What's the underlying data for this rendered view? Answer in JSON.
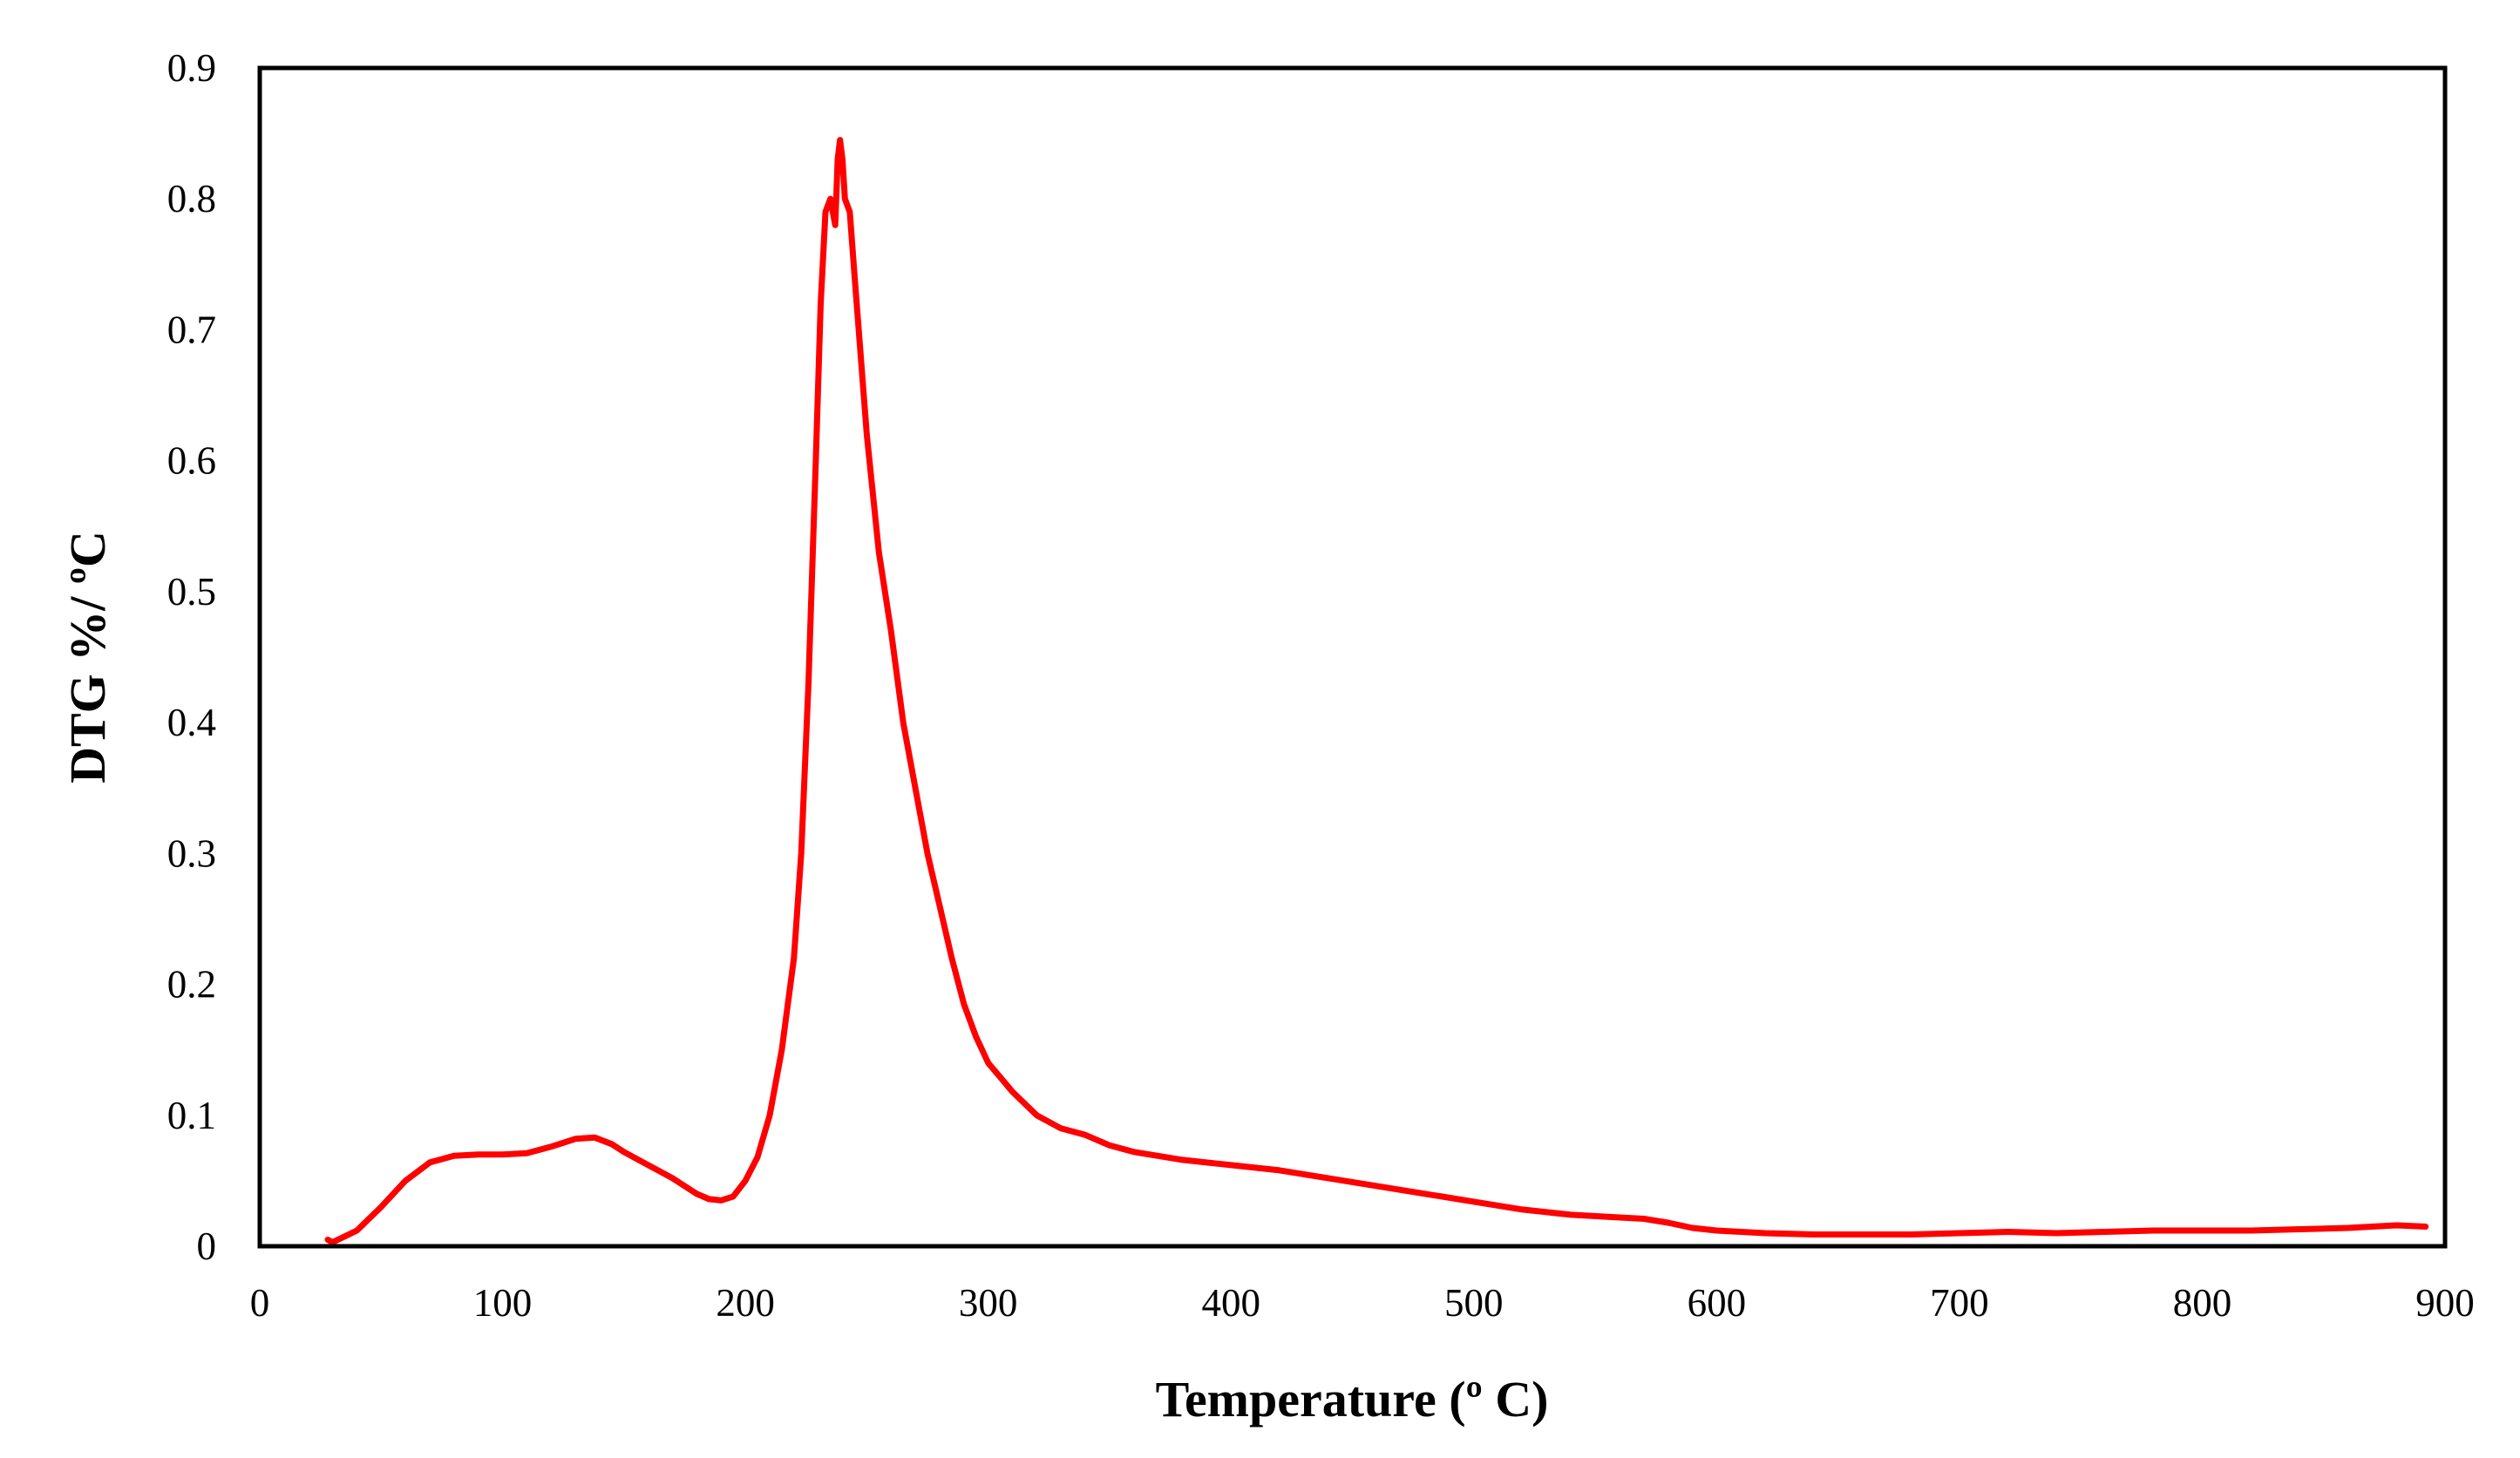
{
  "chart_data": {
    "type": "line",
    "title": "",
    "xlabel": "Temperature (º C)",
    "ylabel": "DTG %/ ºC",
    "xlim": [
      0,
      900
    ],
    "ylim": [
      0,
      0.9
    ],
    "x_ticks": [
      0,
      100,
      200,
      300,
      400,
      500,
      600,
      700,
      800,
      900
    ],
    "y_ticks": [
      0,
      0.1,
      0.2,
      0.3,
      0.4,
      0.5,
      0.6,
      0.7,
      0.8,
      0.9
    ],
    "x_tick_labels": [
      "0",
      "100",
      "200",
      "300",
      "400",
      "500",
      "600",
      "700",
      "800",
      "900"
    ],
    "y_tick_labels": [
      "0",
      "0.1",
      "0.2",
      "0.3",
      "0.4",
      "0.5",
      "0.6",
      "0.7",
      "0.8",
      "0.9"
    ],
    "grid": false,
    "legend": "none",
    "line_color": "#ff0000",
    "series": [
      {
        "x": [
          28,
          30,
          40,
          50,
          60,
          70,
          80,
          90,
          100,
          110,
          120,
          130,
          138,
          145,
          150,
          160,
          170,
          180,
          185,
          190,
          195,
          200,
          205,
          210,
          215,
          220,
          223,
          226,
          229,
          231,
          233,
          235,
          237,
          238,
          239,
          240,
          241,
          243,
          245,
          250,
          255,
          260,
          265,
          270,
          275,
          280,
          285,
          290,
          295,
          300,
          310,
          320,
          330,
          340,
          350,
          360,
          380,
          400,
          420,
          440,
          460,
          480,
          500,
          520,
          540,
          560,
          570,
          580,
          590,
          600,
          620,
          640,
          660,
          680,
          700,
          720,
          740,
          760,
          780,
          800,
          820,
          840,
          860,
          880,
          892
        ],
        "y": [
          0.005,
          0.003,
          0.012,
          0.03,
          0.05,
          0.064,
          0.069,
          0.07,
          0.07,
          0.071,
          0.076,
          0.082,
          0.083,
          0.078,
          0.072,
          0.062,
          0.052,
          0.04,
          0.036,
          0.035,
          0.038,
          0.05,
          0.068,
          0.1,
          0.15,
          0.22,
          0.3,
          0.43,
          0.6,
          0.72,
          0.79,
          0.8,
          0.78,
          0.83,
          0.845,
          0.83,
          0.8,
          0.79,
          0.74,
          0.62,
          0.53,
          0.47,
          0.4,
          0.35,
          0.3,
          0.26,
          0.22,
          0.185,
          0.16,
          0.14,
          0.118,
          0.1,
          0.09,
          0.085,
          0.077,
          0.072,
          0.066,
          0.062,
          0.058,
          0.052,
          0.046,
          0.04,
          0.034,
          0.028,
          0.024,
          0.022,
          0.021,
          0.018,
          0.014,
          0.012,
          0.01,
          0.009,
          0.009,
          0.009,
          0.01,
          0.011,
          0.01,
          0.011,
          0.012,
          0.012,
          0.012,
          0.013,
          0.014,
          0.016,
          0.015
        ]
      }
    ]
  }
}
